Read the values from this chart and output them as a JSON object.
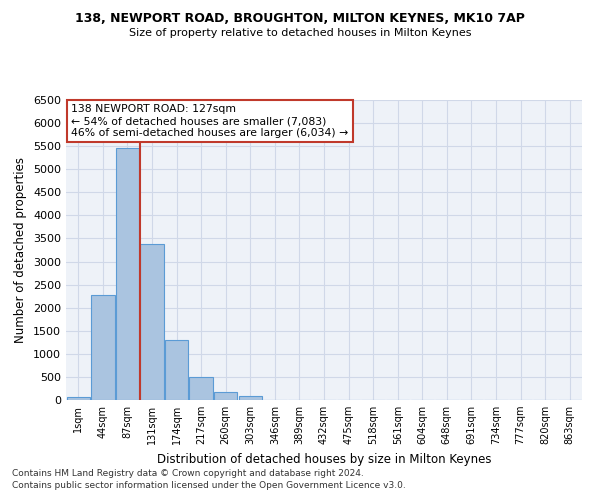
{
  "title1": "138, NEWPORT ROAD, BROUGHTON, MILTON KEYNES, MK10 7AP",
  "title2": "Size of property relative to detached houses in Milton Keynes",
  "xlabel": "Distribution of detached houses by size in Milton Keynes",
  "ylabel": "Number of detached properties",
  "footer1": "Contains HM Land Registry data © Crown copyright and database right 2024.",
  "footer2": "Contains public sector information licensed under the Open Government Licence v3.0.",
  "bar_labels": [
    "1sqm",
    "44sqm",
    "87sqm",
    "131sqm",
    "174sqm",
    "217sqm",
    "260sqm",
    "303sqm",
    "346sqm",
    "389sqm",
    "432sqm",
    "475sqm",
    "518sqm",
    "561sqm",
    "604sqm",
    "648sqm",
    "691sqm",
    "734sqm",
    "777sqm",
    "820sqm",
    "863sqm"
  ],
  "bar_values": [
    75,
    2270,
    5450,
    3380,
    1310,
    490,
    175,
    80,
    0,
    0,
    0,
    0,
    0,
    0,
    0,
    0,
    0,
    0,
    0,
    0,
    0
  ],
  "bar_color": "#aac4e0",
  "bar_edgecolor": "#5b9bd5",
  "grid_color": "#d0d8e8",
  "background_color": "#eef2f8",
  "vline_color": "#c0392b",
  "annotation_text": "138 NEWPORT ROAD: 127sqm\n← 54% of detached houses are smaller (7,083)\n46% of semi-detached houses are larger (6,034) →",
  "annotation_box_color": "#ffffff",
  "annotation_box_edgecolor": "#c0392b",
  "ylim": [
    0,
    6500
  ],
  "yticks": [
    0,
    500,
    1000,
    1500,
    2000,
    2500,
    3000,
    3500,
    4000,
    4500,
    5000,
    5500,
    6000,
    6500
  ]
}
